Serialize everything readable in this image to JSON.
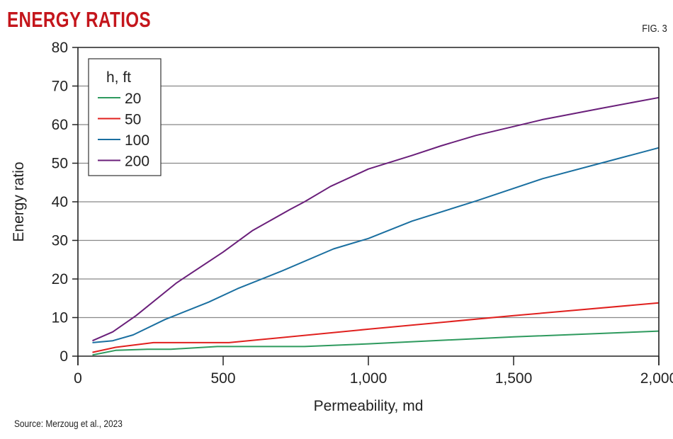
{
  "header": {
    "title": "ENERGY RATIOS",
    "figure_label": "FIG. 3"
  },
  "footer": {
    "source": "Source: Merzoug et al., 2023"
  },
  "chart_data": {
    "type": "line",
    "title": "",
    "xlabel": "Permeability, md",
    "ylabel": "Energy ratio",
    "xlim": [
      0,
      2000
    ],
    "ylim": [
      0,
      80
    ],
    "xticks": [
      0,
      500,
      1000,
      1500,
      2000
    ],
    "xtick_labels": [
      "0",
      "500",
      "1,000",
      "1,500",
      "2,000"
    ],
    "yticks": [
      0,
      10,
      20,
      30,
      40,
      50,
      60,
      70,
      80
    ],
    "ytick_labels": [
      "0",
      "10",
      "20",
      "30",
      "40",
      "50",
      "60",
      "70",
      "80"
    ],
    "grid": "horizontal",
    "legend": {
      "title": "h, ft",
      "position": "top-left"
    },
    "series": [
      {
        "name": "20",
        "color": "#2e9a5e",
        "x": [
          50,
          130,
          240,
          320,
          480,
          780,
          1000,
          1500,
          2000
        ],
        "y": [
          0.3,
          1.5,
          1.8,
          1.8,
          2.5,
          2.5,
          3.2,
          5,
          6.5
        ]
      },
      {
        "name": "50",
        "color": "#e0201e",
        "x": [
          50,
          130,
          260,
          520,
          1000,
          1500,
          2000
        ],
        "y": [
          1,
          2.3,
          3.5,
          3.5,
          7,
          10.5,
          13.8
        ]
      },
      {
        "name": "100",
        "color": "#1a6fa0",
        "x": [
          50,
          120,
          190,
          300,
          450,
          550,
          700,
          880,
          1000,
          1150,
          1370,
          1600,
          1800,
          2000
        ],
        "y": [
          3.5,
          4,
          5.5,
          9.5,
          14,
          17.5,
          22,
          27.8,
          30.5,
          35,
          40.2,
          46,
          50,
          54
        ]
      },
      {
        "name": "200",
        "color": "#6a1f7a",
        "x": [
          50,
          120,
          200,
          340,
          500,
          600,
          730,
          780,
          870,
          1000,
          1150,
          1250,
          1370,
          1500,
          1600,
          1800,
          2000
        ],
        "y": [
          4,
          6.3,
          10.5,
          19,
          27,
          32.5,
          38,
          40,
          44,
          48.5,
          52,
          54.5,
          57.2,
          59.5,
          61.3,
          64.2,
          67
        ]
      }
    ]
  }
}
